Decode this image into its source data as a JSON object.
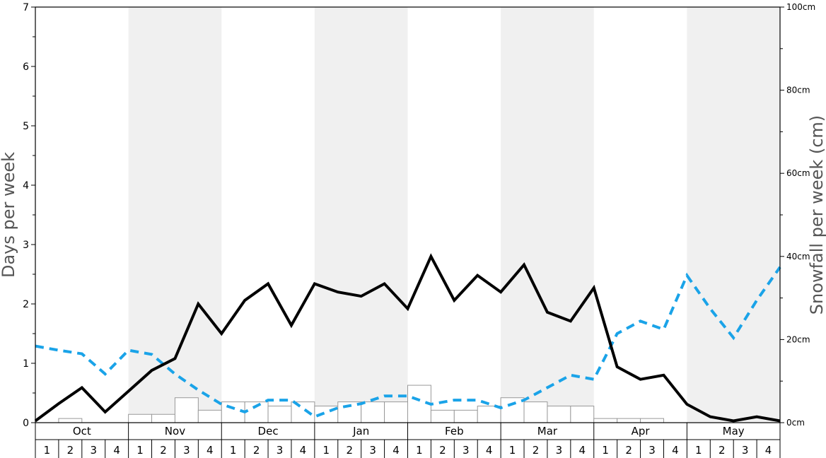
{
  "chart_data": {
    "type": "bar+line",
    "title": "",
    "ylabel_left": "Days per week",
    "ylabel_right": "Snowfall per week (cm)",
    "ylim_left": [
      0,
      7
    ],
    "ylim_right": [
      0,
      100
    ],
    "yticks_left": [
      "0",
      "1",
      "2",
      "3",
      "4",
      "5",
      "6",
      "7"
    ],
    "yticks_right": [
      "0cm",
      "20cm",
      "40cm",
      "60cm",
      "80cm",
      "100cm"
    ],
    "months": [
      "Oct",
      "Nov",
      "Dec",
      "Jan",
      "Feb",
      "Mar",
      "Apr",
      "May"
    ],
    "weeks": [
      "1",
      "2",
      "3",
      "4"
    ],
    "shaded_months": [
      "Nov",
      "Jan",
      "Mar",
      "May"
    ],
    "colors": {
      "solid_line": "#000000",
      "dashed_line": "#1aa3e8",
      "bars_fill": "#ffffff",
      "bars_stroke": "#999999",
      "shade": "#f0f0f0"
    },
    "series": [
      {
        "style": "solid-black-line",
        "axis": "left",
        "values": [
          0.03,
          0.32,
          0.59,
          0.18,
          0.53,
          0.88,
          1.08,
          2.0,
          1.5,
          2.06,
          2.34,
          1.64,
          2.34,
          2.2,
          2.13,
          2.34,
          1.92,
          2.8,
          2.06,
          2.48,
          2.2,
          2.66,
          1.86,
          1.71,
          2.27,
          0.94,
          0.73,
          0.8,
          0.31,
          0.1,
          0.03,
          0.1,
          0.03
        ]
      },
      {
        "style": "dashed-blue-line",
        "axis": "left",
        "values": [
          1.29,
          1.22,
          1.16,
          0.82,
          1.22,
          1.15,
          0.82,
          0.55,
          0.31,
          0.18,
          0.38,
          0.38,
          0.1,
          0.25,
          0.32,
          0.45,
          0.45,
          0.31,
          0.38,
          0.38,
          0.25,
          0.38,
          0.59,
          0.8,
          0.73,
          1.5,
          1.71,
          1.57,
          2.48,
          1.92,
          1.43,
          2.06,
          2.62
        ]
      },
      {
        "style": "bars",
        "axis": "right",
        "values": [
          0,
          1,
          0,
          0,
          2,
          2,
          6,
          3,
          5,
          5,
          4,
          5,
          4,
          5,
          5,
          5,
          9,
          3,
          3,
          4,
          6,
          5,
          4,
          4,
          1,
          1,
          1,
          0,
          0,
          0,
          0,
          0
        ]
      }
    ]
  }
}
